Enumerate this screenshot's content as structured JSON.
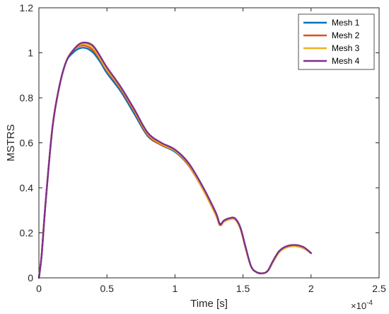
{
  "chart_data": {
    "type": "line",
    "xlabel": "Time [s]",
    "ylabel": "MSTRS",
    "x_multiplier": {
      "base": "×10",
      "exponent": "-4"
    },
    "xlim": [
      0,
      2.5
    ],
    "ylim": [
      0,
      1.2
    ],
    "x_ticks": [
      0,
      0.5,
      1,
      1.5,
      2,
      2.5
    ],
    "x_tick_labels": [
      "0",
      "0.5",
      "1",
      "1.5",
      "2",
      "2.5"
    ],
    "y_ticks": [
      0,
      0.2,
      0.4,
      0.6,
      0.8,
      1,
      1.2
    ],
    "y_tick_labels": [
      "0",
      "0.2",
      "0.4",
      "0.6",
      "0.8",
      "1",
      "1.2"
    ],
    "grid": false,
    "legend": {
      "position": "top-right"
    },
    "series": [
      {
        "name": "Mesh 1",
        "color": "#0072BD",
        "x": [
          0,
          0.02,
          0.05,
          0.1,
          0.15,
          0.2,
          0.25,
          0.3,
          0.35,
          0.4,
          0.45,
          0.5,
          0.6,
          0.7,
          0.8,
          0.9,
          1.0,
          1.1,
          1.2,
          1.3,
          1.33,
          1.36,
          1.4,
          1.44,
          1.48,
          1.52,
          1.56,
          1.6,
          1.64,
          1.68,
          1.72,
          1.76,
          1.8,
          1.85,
          1.9,
          1.95,
          2.0
        ],
        "y": [
          0,
          0.1,
          0.34,
          0.67,
          0.85,
          0.96,
          1.0,
          1.02,
          1.02,
          1.0,
          0.96,
          0.91,
          0.83,
          0.73,
          0.63,
          0.59,
          0.56,
          0.5,
          0.4,
          0.28,
          0.235,
          0.25,
          0.26,
          0.26,
          0.22,
          0.13,
          0.05,
          0.025,
          0.02,
          0.03,
          0.07,
          0.11,
          0.13,
          0.14,
          0.14,
          0.13,
          0.11
        ]
      },
      {
        "name": "Mesh 2",
        "color": "#D95319",
        "x": [
          0,
          0.02,
          0.05,
          0.1,
          0.15,
          0.2,
          0.25,
          0.3,
          0.35,
          0.4,
          0.45,
          0.5,
          0.6,
          0.7,
          0.8,
          0.9,
          1.0,
          1.1,
          1.2,
          1.3,
          1.33,
          1.36,
          1.4,
          1.44,
          1.48,
          1.52,
          1.56,
          1.6,
          1.64,
          1.68,
          1.72,
          1.76,
          1.8,
          1.85,
          1.9,
          1.95,
          2.0
        ],
        "y": [
          0,
          0.1,
          0.34,
          0.67,
          0.85,
          0.96,
          1.01,
          1.03,
          1.03,
          1.01,
          0.97,
          0.92,
          0.84,
          0.74,
          0.635,
          0.59,
          0.565,
          0.5,
          0.4,
          0.28,
          0.235,
          0.25,
          0.26,
          0.26,
          0.22,
          0.13,
          0.05,
          0.025,
          0.02,
          0.03,
          0.07,
          0.11,
          0.13,
          0.14,
          0.14,
          0.13,
          0.11
        ]
      },
      {
        "name": "Mesh 3",
        "color": "#EDB120",
        "x": [
          0,
          0.02,
          0.05,
          0.1,
          0.15,
          0.2,
          0.25,
          0.3,
          0.35,
          0.4,
          0.45,
          0.5,
          0.6,
          0.7,
          0.8,
          0.9,
          1.0,
          1.1,
          1.2,
          1.3,
          1.33,
          1.36,
          1.4,
          1.44,
          1.48,
          1.52,
          1.56,
          1.6,
          1.64,
          1.68,
          1.72,
          1.76,
          1.8,
          1.85,
          1.9,
          1.95,
          2.0
        ],
        "y": [
          0,
          0.1,
          0.34,
          0.67,
          0.85,
          0.96,
          1.01,
          1.035,
          1.04,
          1.02,
          0.975,
          0.925,
          0.845,
          0.745,
          0.64,
          0.595,
          0.565,
          0.505,
          0.4,
          0.28,
          0.24,
          0.25,
          0.26,
          0.26,
          0.22,
          0.13,
          0.05,
          0.025,
          0.02,
          0.03,
          0.07,
          0.11,
          0.13,
          0.14,
          0.14,
          0.13,
          0.11
        ]
      },
      {
        "name": "Mesh 4",
        "color": "#7E2F8E",
        "x": [
          0,
          0.02,
          0.05,
          0.1,
          0.15,
          0.2,
          0.25,
          0.3,
          0.35,
          0.4,
          0.45,
          0.5,
          0.6,
          0.7,
          0.8,
          0.9,
          1.0,
          1.1,
          1.2,
          1.3,
          1.33,
          1.36,
          1.4,
          1.44,
          1.48,
          1.52,
          1.56,
          1.6,
          1.64,
          1.68,
          1.72,
          1.76,
          1.8,
          1.85,
          1.9,
          1.95,
          2.0
        ],
        "y": [
          0,
          0.1,
          0.34,
          0.67,
          0.85,
          0.96,
          1.01,
          1.04,
          1.045,
          1.03,
          0.985,
          0.935,
          0.85,
          0.75,
          0.645,
          0.6,
          0.57,
          0.51,
          0.41,
          0.29,
          0.24,
          0.255,
          0.265,
          0.265,
          0.225,
          0.135,
          0.05,
          0.025,
          0.02,
          0.03,
          0.075,
          0.115,
          0.135,
          0.145,
          0.145,
          0.135,
          0.11
        ]
      }
    ]
  }
}
